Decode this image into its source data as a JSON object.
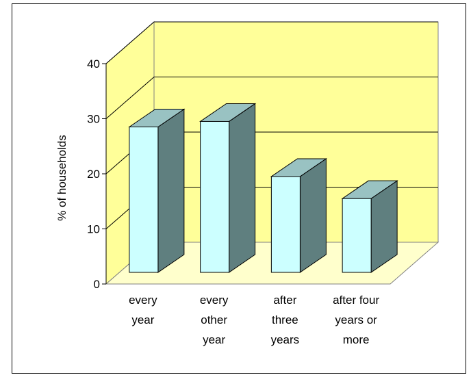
{
  "chart_data": {
    "type": "bar",
    "categories": [
      [
        "every",
        "year"
      ],
      [
        "every",
        "other",
        "year"
      ],
      [
        "after",
        "three",
        "years"
      ],
      [
        "after four",
        "years or",
        "more"
      ]
    ],
    "values": [
      30,
      31,
      21,
      17
    ],
    "ylabel": "% of households",
    "ylim": [
      0,
      40
    ],
    "yticks": [
      0,
      10,
      20,
      30,
      40
    ],
    "grid": true,
    "legend": "none",
    "colors": {
      "bar_front": "#ccffff",
      "bar_top": "#99c2c2",
      "bar_side": "#5f7f7f",
      "back_wall": "#ffff99",
      "side_wall": "#ffff99",
      "floor": "#ffffcc",
      "gridline": "#000000"
    }
  }
}
